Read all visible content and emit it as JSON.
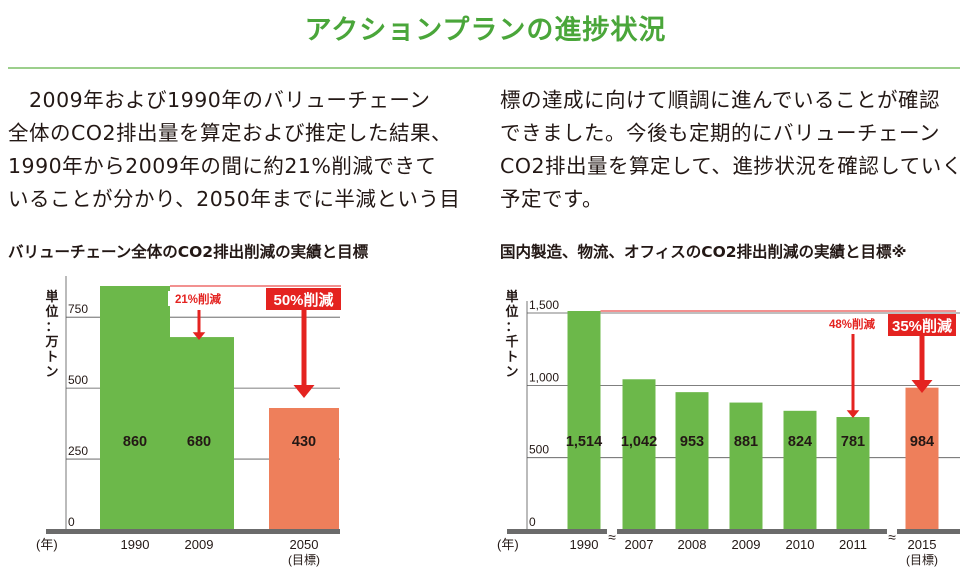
{
  "title": "アクションプランの進捗状況",
  "body": {
    "left_lines": [
      "　2009年および1990年のバリューチェーン",
      "全体のCO2排出量を算定および推定した結果、",
      "1990年から2009年の間に約21%削減できて",
      "いることが分かり、2050年までに半減という目"
    ],
    "right_lines": [
      "標の達成に向けて順調に進んでいることが確認",
      "できました。今後も定期的にバリューチェーン",
      "CO2排出量を算定して、進捗状況を確認していく",
      "予定です。"
    ]
  },
  "chart1": {
    "title": "バリューチェーン全体のCO2排出削減の実績と目標",
    "unit_label": [
      "単",
      "位",
      "：",
      "万",
      "ト",
      "ン"
    ],
    "year_label": "(年)",
    "colors": {
      "actual": "#6cb84a",
      "target": "#ee7f5b",
      "arrow": "#e42320"
    }
  },
  "chart2": {
    "title": "国内製造、物流、オフィスのCO2排出削減の実績と目標※",
    "unit_label": [
      "単",
      "位",
      "：",
      "千",
      "ト",
      "ン"
    ],
    "year_label": "(年)",
    "colors": {
      "actual": "#6cb84a",
      "target": "#ee7f5b",
      "arrow": "#e42320"
    }
  },
  "chart_data": [
    {
      "type": "bar",
      "title": "バリューチェーン全体のCO2排出削減の実績と目標",
      "ylabel": "単位：万トン",
      "xlabel": "(年)",
      "ylim": [
        0,
        860
      ],
      "yticks": [
        "0",
        "250",
        "500",
        "750"
      ],
      "ytick_values": [
        0,
        250,
        500,
        750
      ],
      "categories": [
        "1990",
        "2009",
        "2050"
      ],
      "category_notes": [
        "",
        "",
        "(目標)"
      ],
      "values": [
        860,
        680,
        430
      ],
      "value_labels": [
        "860",
        "680",
        "430"
      ],
      "kinds": [
        "actual",
        "actual",
        "target"
      ],
      "annotations": [
        {
          "text": "21%削減",
          "style": "small",
          "to_category": "2009"
        },
        {
          "text": "50%削減",
          "style": "boxed",
          "to_category": "2050"
        }
      ],
      "grid": true
    },
    {
      "type": "bar",
      "title": "国内製造、物流、オフィスのCO2排出削減の実績と目標※",
      "ylabel": "単位：千トン",
      "xlabel": "(年)",
      "ylim": [
        0,
        1514
      ],
      "yticks": [
        "0",
        "500",
        "1,000",
        "1,500"
      ],
      "ytick_values": [
        0,
        500,
        1000,
        1500
      ],
      "categories": [
        "1990",
        "2007",
        "2008",
        "2009",
        "2010",
        "2011",
        "2015"
      ],
      "category_notes": [
        "",
        "",
        "",
        "",
        "",
        "",
        "(目標)"
      ],
      "values": [
        1514,
        1042,
        953,
        881,
        824,
        781,
        984
      ],
      "value_labels": [
        "1,514",
        "1,042",
        "953",
        "881",
        "824",
        "781",
        "984"
      ],
      "kinds": [
        "actual",
        "actual",
        "actual",
        "actual",
        "actual",
        "actual",
        "target"
      ],
      "annotations": [
        {
          "text": "48%削減",
          "style": "small",
          "to_category": "2011"
        },
        {
          "text": "35%削減",
          "style": "boxed",
          "to_category": "2015"
        }
      ],
      "axis_breaks": [
        "1990-2007",
        "2011-2015"
      ],
      "grid": true
    }
  ]
}
